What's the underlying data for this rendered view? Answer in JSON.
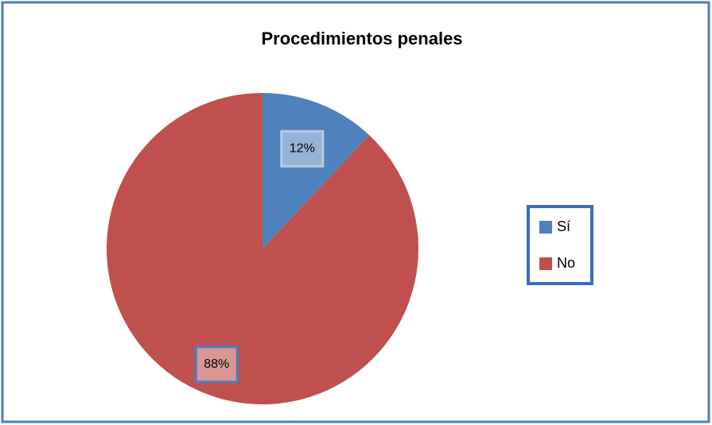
{
  "chart_data": {
    "type": "pie",
    "title": "Procedimientos penales",
    "categories": [
      "Sí",
      "No"
    ],
    "values": [
      12,
      88
    ],
    "value_labels": [
      "12%",
      "88%"
    ],
    "colors": [
      "#4f81bd",
      "#c0504d"
    ],
    "legend": "right"
  }
}
